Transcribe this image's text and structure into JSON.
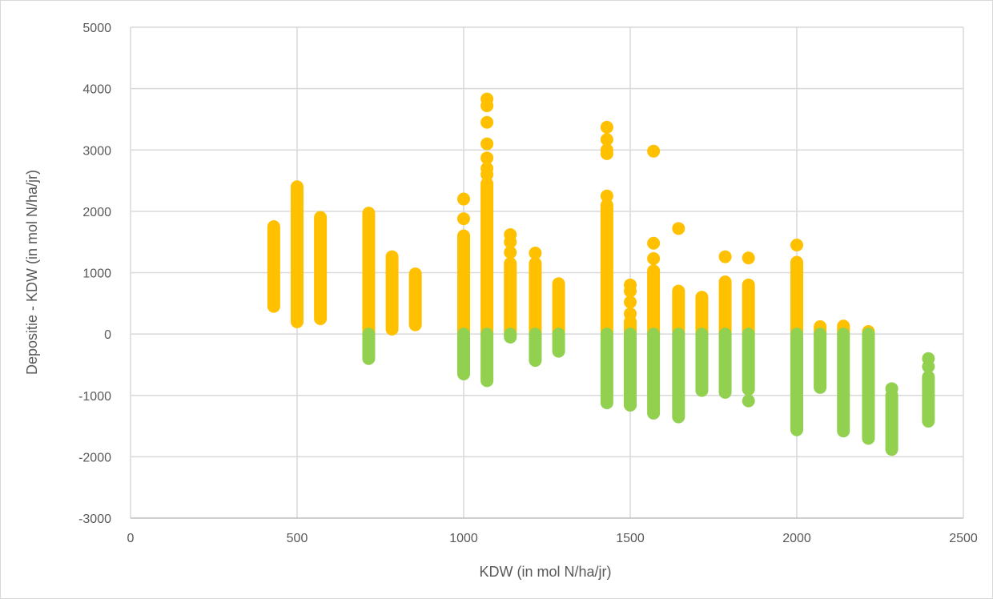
{
  "chart_data": {
    "type": "scatter",
    "title": "",
    "xlabel": "KDW (in mol N/ha/jr)",
    "ylabel": "Depositie - KDW (in mol N/ha/jr)",
    "xlim": [
      0,
      2500
    ],
    "ylim": [
      -3000,
      5000
    ],
    "x_ticks": [
      "0",
      "500",
      "1000",
      "1500",
      "2000",
      "2500"
    ],
    "y_ticks": [
      "5000",
      "4000",
      "3000",
      "2000",
      "1000",
      "0",
      "-1000",
      "-2000",
      "-3000"
    ],
    "grid": true,
    "legend": "none",
    "colors": {
      "exceedance": "#FFC000",
      "below": "#92D050",
      "grid": "#d9d9d9",
      "axis": "#bfbfbf"
    },
    "series": [
      {
        "color_key": "exceedance",
        "bands": [
          {
            "x": 430,
            "y_min": 450,
            "y_max": 1750
          },
          {
            "x": 500,
            "y_min": 200,
            "y_max": 2400
          },
          {
            "x": 570,
            "y_min": 250,
            "y_max": 1900
          },
          {
            "x": 715,
            "y_min": 0,
            "y_max": 1970
          },
          {
            "x": 785,
            "y_min": 80,
            "y_max": 1260
          },
          {
            "x": 855,
            "y_min": 150,
            "y_max": 980
          },
          {
            "x": 1000,
            "y_min": 0,
            "y_max": 1600
          },
          {
            "x": 1070,
            "y_min": 0,
            "y_max": 2450
          },
          {
            "x": 1140,
            "y_min": 0,
            "y_max": 1150
          },
          {
            "x": 1215,
            "y_min": 0,
            "y_max": 1150
          },
          {
            "x": 1285,
            "y_min": 0,
            "y_max": 820
          },
          {
            "x": 1430,
            "y_min": 0,
            "y_max": 2100
          },
          {
            "x": 1500,
            "y_min": 0,
            "y_max": 200
          },
          {
            "x": 1570,
            "y_min": 0,
            "y_max": 1030
          },
          {
            "x": 1645,
            "y_min": 0,
            "y_max": 700
          },
          {
            "x": 1715,
            "y_min": 0,
            "y_max": 600
          },
          {
            "x": 1785,
            "y_min": 0,
            "y_max": 850
          },
          {
            "x": 1855,
            "y_min": 0,
            "y_max": 800
          },
          {
            "x": 2000,
            "y_min": 0,
            "y_max": 1170
          },
          {
            "x": 2070,
            "y_min": 0,
            "y_max": 120
          },
          {
            "x": 2140,
            "y_min": 0,
            "y_max": 130
          },
          {
            "x": 2215,
            "y_min": 0,
            "y_max": 40
          }
        ],
        "points": [
          {
            "x": 1000,
            "y": 2200
          },
          {
            "x": 1000,
            "y": 1880
          },
          {
            "x": 1070,
            "y": 3830
          },
          {
            "x": 1070,
            "y": 3720
          },
          {
            "x": 1070,
            "y": 3450
          },
          {
            "x": 1070,
            "y": 3100
          },
          {
            "x": 1070,
            "y": 2870
          },
          {
            "x": 1070,
            "y": 2700
          },
          {
            "x": 1070,
            "y": 2600
          },
          {
            "x": 1140,
            "y": 1620
          },
          {
            "x": 1140,
            "y": 1500
          },
          {
            "x": 1140,
            "y": 1330
          },
          {
            "x": 1215,
            "y": 1320
          },
          {
            "x": 1430,
            "y": 3370
          },
          {
            "x": 1430,
            "y": 3170
          },
          {
            "x": 1430,
            "y": 3000
          },
          {
            "x": 1430,
            "y": 2940
          },
          {
            "x": 1430,
            "y": 2250
          },
          {
            "x": 1500,
            "y": 800
          },
          {
            "x": 1500,
            "y": 700
          },
          {
            "x": 1500,
            "y": 520
          },
          {
            "x": 1500,
            "y": 330
          },
          {
            "x": 1570,
            "y": 2980
          },
          {
            "x": 1570,
            "y": 1480
          },
          {
            "x": 1570,
            "y": 1230
          },
          {
            "x": 1645,
            "y": 1720
          },
          {
            "x": 1785,
            "y": 1260
          },
          {
            "x": 1855,
            "y": 1240
          },
          {
            "x": 2000,
            "y": 1450
          }
        ]
      },
      {
        "color_key": "below",
        "bands": [
          {
            "x": 715,
            "y_min": -400,
            "y_max": 0
          },
          {
            "x": 1000,
            "y_min": -650,
            "y_max": 0
          },
          {
            "x": 1070,
            "y_min": -760,
            "y_max": 0
          },
          {
            "x": 1140,
            "y_min": -50,
            "y_max": 0
          },
          {
            "x": 1215,
            "y_min": -430,
            "y_max": 0
          },
          {
            "x": 1285,
            "y_min": -280,
            "y_max": 0
          },
          {
            "x": 1430,
            "y_min": -1120,
            "y_max": 0
          },
          {
            "x": 1500,
            "y_min": -1160,
            "y_max": 0
          },
          {
            "x": 1570,
            "y_min": -1290,
            "y_max": 0
          },
          {
            "x": 1645,
            "y_min": -1350,
            "y_max": 0
          },
          {
            "x": 1715,
            "y_min": -920,
            "y_max": 0
          },
          {
            "x": 1785,
            "y_min": -950,
            "y_max": 0
          },
          {
            "x": 1855,
            "y_min": -900,
            "y_max": 0
          },
          {
            "x": 2000,
            "y_min": -1560,
            "y_max": 0
          },
          {
            "x": 2070,
            "y_min": -870,
            "y_max": 0
          },
          {
            "x": 2140,
            "y_min": -1580,
            "y_max": 0
          },
          {
            "x": 2215,
            "y_min": -1700,
            "y_max": 0
          },
          {
            "x": 2285,
            "y_min": -1880,
            "y_max": -1000
          },
          {
            "x": 2395,
            "y_min": -1420,
            "y_max": -700
          }
        ],
        "points": [
          {
            "x": 1855,
            "y": -1090
          },
          {
            "x": 2285,
            "y": -890
          },
          {
            "x": 2395,
            "y": -400
          },
          {
            "x": 2395,
            "y": -530
          }
        ]
      }
    ]
  }
}
